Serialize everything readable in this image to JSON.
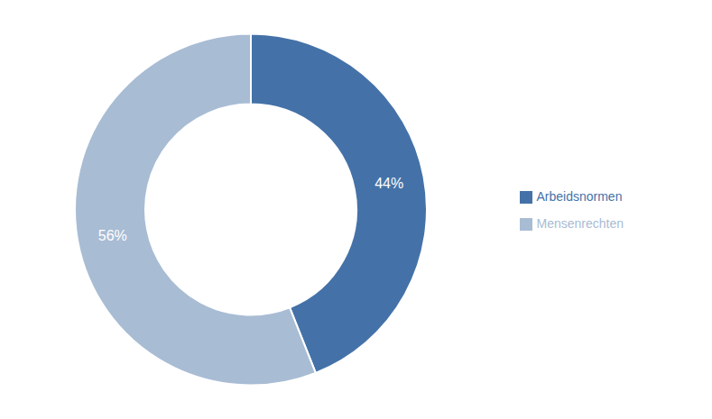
{
  "chart_data": {
    "type": "donut",
    "categories": [
      "Arbeidsnormen",
      "Mensenrechten"
    ],
    "values": [
      44,
      56
    ],
    "value_labels": [
      "44%",
      "56%"
    ],
    "colors": [
      "#4472a8",
      "#a8bcd4"
    ],
    "data_labels": true,
    "legend": "right"
  }
}
